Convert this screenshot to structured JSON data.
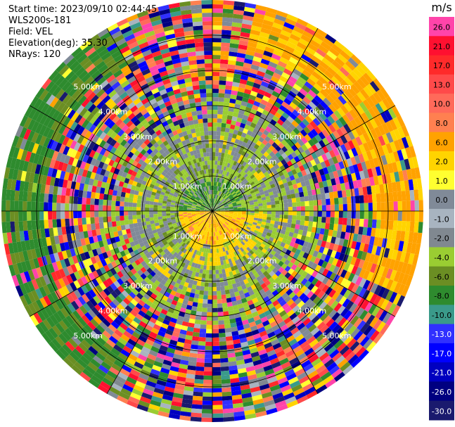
{
  "info": {
    "start_time": "Start time: 2023/09/10 02:44:45",
    "instrument": "WLS200s-181",
    "field": "Field: VEL",
    "elevation": "Elevation(deg): 35.30",
    "nrays": "NRays: 120"
  },
  "chart_data": {
    "type": "ppi",
    "field": "VEL",
    "units": "m/s",
    "range_rings_km": [
      1,
      2,
      3,
      4,
      5
    ],
    "range_ring_labels": [
      "1.00km",
      "2.00km",
      "3.00km",
      "4.00km",
      "5.00km"
    ],
    "max_range_km": 6,
    "n_rays": 120,
    "spokes": 12,
    "colorbar": {
      "title": "m/s",
      "tick_labels": [
        "26.0",
        "21.0",
        "17.0",
        "13.0",
        "10.0",
        "8.0",
        "6.0",
        "2.0",
        "1.0",
        "0.0",
        "-1.0",
        "-2.0",
        "-4.0",
        "-6.0",
        "-8.0",
        "-10.0",
        "-13.0",
        "-17.0",
        "-21.0",
        "-26.0",
        "-30.0"
      ],
      "colors": [
        "#ff44aa",
        "#ff1030",
        "#ff2a2a",
        "#ff4a4a",
        "#ff6a5a",
        "#ff8050",
        "#ffa200",
        "#ffd400",
        "#ffff30",
        "#808a98",
        "#a8b4c0",
        "#808890",
        "#9acd32",
        "#6b8e23",
        "#2e8b2e",
        "#3a9a8a",
        "#3030ff",
        "#0000ff",
        "#0000c0",
        "#000080",
        "#1a1a6e"
      ]
    }
  }
}
